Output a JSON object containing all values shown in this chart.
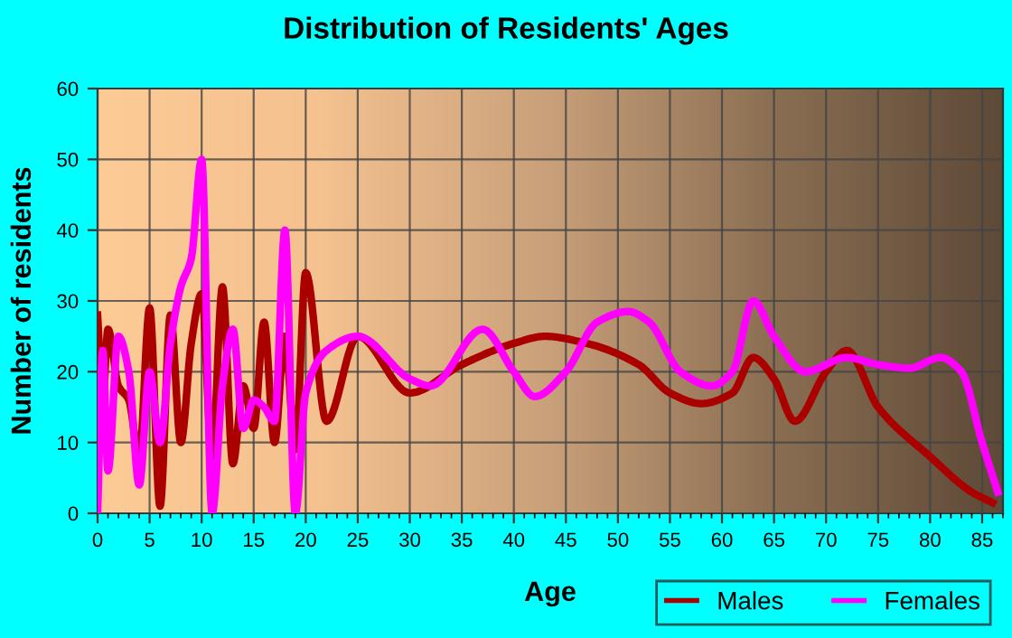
{
  "chart_data": {
    "type": "line",
    "title": "Distribution of Residents' Ages",
    "xlabel": "Age",
    "ylabel": "Number of residents",
    "xlim": [
      0,
      87
    ],
    "xticks": [
      0,
      5,
      10,
      15,
      20,
      25,
      30,
      35,
      40,
      45,
      50,
      55,
      60,
      65,
      70,
      75,
      80,
      85
    ],
    "ylim": [
      0,
      60
    ],
    "yticks": [
      0,
      10,
      20,
      30,
      40,
      50,
      60
    ],
    "grid": true,
    "legend": "bottom right",
    "marker": "none",
    "line_style": "solid",
    "series": [
      {
        "name": "Males",
        "color": "#aa0000",
        "x": [
          0,
          0.5,
          1,
          2,
          3,
          4,
          5,
          6,
          7,
          8,
          9,
          10,
          11,
          12,
          13,
          14,
          15,
          16,
          17,
          18,
          19,
          20,
          22,
          25,
          30,
          35,
          40,
          43,
          47,
          52,
          55,
          58,
          61,
          63,
          65,
          67,
          70,
          72,
          75,
          80,
          84,
          86
        ],
        "values": [
          28,
          16,
          26,
          18,
          16,
          8,
          29,
          1,
          28,
          10,
          24,
          31,
          8,
          32,
          7,
          18,
          12,
          27,
          10,
          25,
          9,
          34,
          13,
          25,
          17,
          21,
          24,
          25,
          24,
          21,
          17,
          15.5,
          17,
          22,
          19,
          13,
          20,
          23,
          15,
          8,
          3,
          1.5
        ]
      },
      {
        "name": "Females",
        "color": "#ff00ff",
        "x": [
          0,
          0.5,
          1,
          2,
          3,
          4,
          5,
          6,
          7,
          8,
          9,
          10,
          11,
          12,
          13,
          14,
          15,
          16,
          17,
          18,
          19,
          20,
          22,
          25,
          30,
          32,
          37,
          40,
          42,
          45,
          48,
          51,
          53,
          56,
          59,
          61,
          63,
          65,
          68,
          72,
          75,
          78,
          81,
          83,
          85,
          86.5
        ],
        "values": [
          0,
          23,
          6,
          25,
          20,
          4,
          20,
          10,
          24,
          32,
          36,
          50,
          0,
          18,
          26,
          12,
          16,
          15,
          13,
          40,
          0,
          17,
          23,
          25,
          19,
          18,
          26,
          20,
          16.5,
          20,
          27,
          28.5,
          27,
          20,
          18,
          20,
          30,
          25,
          20,
          22,
          21,
          20.5,
          22,
          20,
          10,
          3
        ]
      }
    ]
  }
}
